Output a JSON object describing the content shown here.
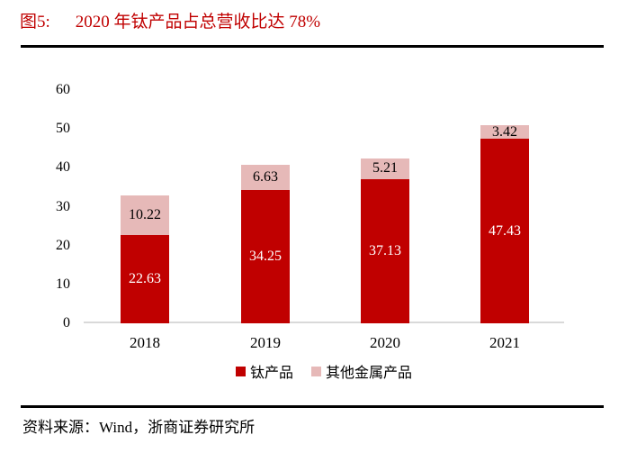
{
  "title": {
    "prefix": "图5:",
    "text": "2020 年钛产品占总营收比达 78%",
    "color": "#c00000"
  },
  "chart_data": {
    "type": "bar",
    "stacked": true,
    "title": "2020 年钛产品占总营收比达 78%",
    "categories": [
      "2018",
      "2019",
      "2020",
      "2021"
    ],
    "series": [
      {
        "name": "钛产品",
        "color": "#c00000",
        "label_color": "#ffffff",
        "values": [
          22.63,
          34.25,
          37.13,
          47.43
        ]
      },
      {
        "name": "其他金属产品",
        "color": "#e6b9b8",
        "label_color": "#000000",
        "values": [
          10.22,
          6.63,
          5.21,
          3.42
        ]
      }
    ],
    "ylim": [
      0,
      60
    ],
    "yticks": [
      0,
      10,
      20,
      30,
      40,
      50,
      60
    ],
    "grid": false,
    "legend_position": "bottom",
    "axis_line_color": "#d9d9d9",
    "xlabel": "",
    "ylabel": ""
  },
  "source": {
    "text": "资料来源：Wind，浙商证券研究所"
  }
}
